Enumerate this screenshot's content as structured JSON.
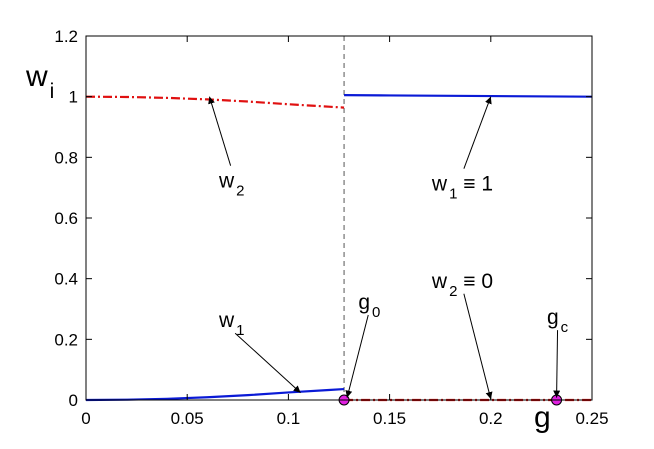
{
  "chart_data": {
    "type": "line",
    "xlabel": "g",
    "ylabel": "w",
    "ylabel_subscript": "i",
    "xlim": [
      0,
      0.25
    ],
    "ylim": [
      0,
      1.2
    ],
    "xticks": [
      "0",
      "0.05",
      "0.1",
      "0.15",
      "0.2",
      "0.25"
    ],
    "xtick_values": [
      0,
      0.05,
      0.1,
      0.15,
      0.2,
      0.25
    ],
    "yticks": [
      "0",
      "0.2",
      "0.4",
      "0.6",
      "0.8",
      "1",
      "1.2"
    ],
    "ytick_values": [
      0,
      0.2,
      0.4,
      0.6,
      0.8,
      1.0,
      1.2
    ],
    "grid": false,
    "series": [
      {
        "color": "#0a1ad6",
        "dash": "solid",
        "segment": "w1_left",
        "x": [
          0,
          0.02,
          0.04,
          0.06,
          0.08,
          0.1,
          0.12,
          0.1275
        ],
        "y": [
          0,
          0.001,
          0.004,
          0.009,
          0.016,
          0.025,
          0.033,
          0.036
        ]
      },
      {
        "color": "#0a1ad6",
        "dash": "solid",
        "segment": "w1_right",
        "x": [
          0.1275,
          0.15,
          0.2,
          0.25
        ],
        "y": [
          1.005,
          1.004,
          1.002,
          1.0
        ]
      },
      {
        "color": "#e01010",
        "dash": "dashdot",
        "segment": "w2_left",
        "x": [
          0,
          0.02,
          0.04,
          0.06,
          0.08,
          0.1,
          0.12,
          0.1275
        ],
        "y": [
          1.0,
          0.999,
          0.996,
          0.991,
          0.984,
          0.975,
          0.967,
          0.964
        ]
      },
      {
        "color": "#e01010",
        "dash": "dashdot",
        "segment": "w2_right",
        "x": [
          0.1275,
          0.15,
          0.2,
          0.25
        ],
        "y": [
          0,
          0,
          0,
          0
        ]
      }
    ],
    "vline": {
      "x": 0.1275,
      "color": "#555555",
      "dash": "dashed"
    },
    "markers": [
      {
        "label": "g",
        "sub": "0",
        "x": 0.1275,
        "y": 0,
        "color": "#e020e0"
      },
      {
        "label": "g",
        "sub": "c",
        "x": 0.2325,
        "y": 0,
        "color": "#e020e0"
      }
    ],
    "annotations": [
      {
        "text": "w",
        "sub": "2",
        "suffix": "",
        "tx": 0.072,
        "ty": 0.7,
        "ax": 0.061,
        "ay": 1.0
      },
      {
        "text": "w",
        "sub": "1",
        "suffix": " ≡ 1",
        "tx": 0.186,
        "ty": 0.69,
        "ax": 0.2,
        "ay": 1.0
      },
      {
        "text": "w",
        "sub": "1",
        "suffix": "",
        "tx": 0.072,
        "ty": 0.24,
        "ax": 0.106,
        "ay": 0.024
      },
      {
        "text": "w",
        "sub": "2",
        "suffix": " ≡ 0",
        "tx": 0.186,
        "ty": 0.37,
        "ax": 0.2,
        "ay": 0.003
      },
      {
        "text": "g",
        "sub": "0",
        "suffix": "",
        "tx": 0.14,
        "ty": 0.3,
        "ax": 0.129,
        "ay": 0.008
      },
      {
        "text": "g",
        "sub": "c",
        "suffix": "",
        "tx": 0.233,
        "ty": 0.25,
        "ax": 0.2325,
        "ay": 0.008
      }
    ]
  }
}
